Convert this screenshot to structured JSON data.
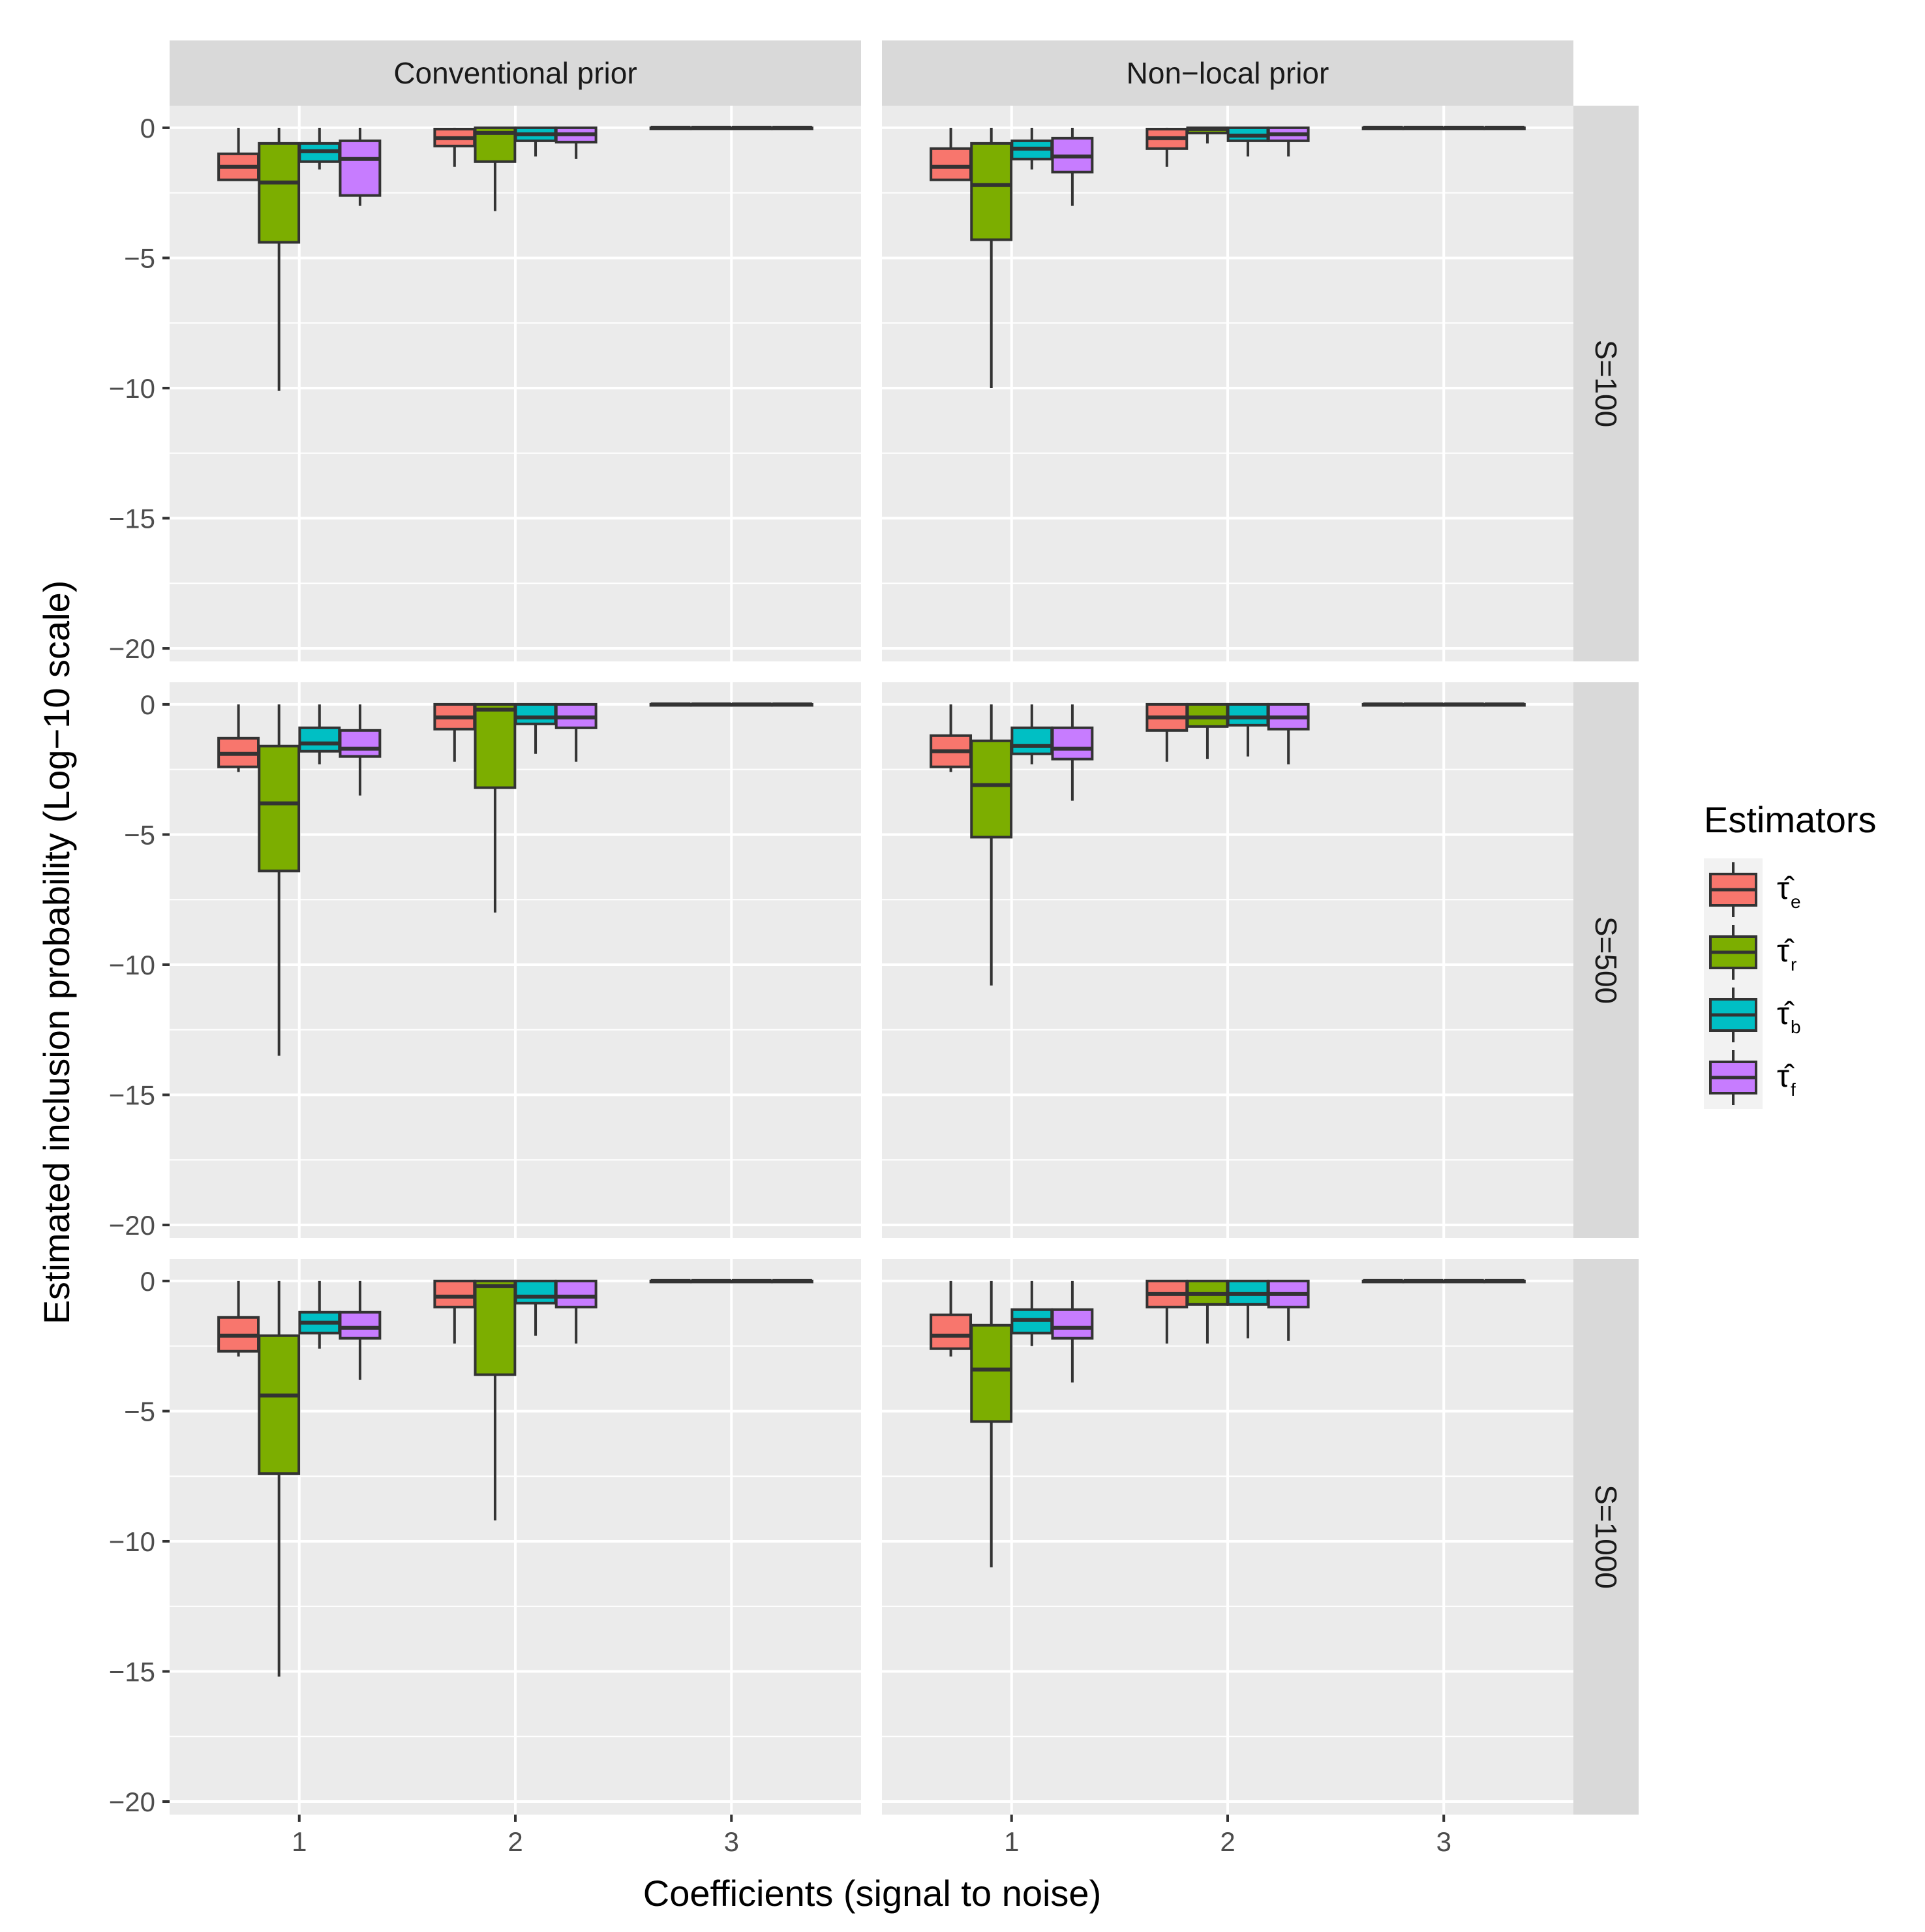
{
  "chart_data": {
    "type": "boxplot",
    "xlabel": "Coefficients (signal to noise)",
    "ylabel": "Estimated inclusion probability (Log−10 scale)",
    "ylim": [
      -20.5,
      0.85
    ],
    "y_ticks": [
      0,
      -5,
      -10,
      -15,
      -20
    ],
    "y_tick_labels": [
      "0",
      "−5",
      "−10",
      "−15",
      "−20"
    ],
    "categories": [
      "1",
      "2",
      "3"
    ],
    "columns": [
      "Conventional prior",
      "Non−local prior"
    ],
    "rows": [
      "S=100",
      "S=500",
      "S=1000"
    ],
    "legend": {
      "title": "Estimators",
      "position": "right",
      "entries": [
        {
          "key": "e",
          "glyph": "τ̂",
          "sub": "e",
          "color": "#F8766D"
        },
        {
          "key": "r",
          "glyph": "τ̂",
          "sub": "r",
          "color": "#7CAE00"
        },
        {
          "key": "b",
          "glyph": "τ̂",
          "sub": "b",
          "color": "#00BFC4"
        },
        {
          "key": "f",
          "glyph": "τ̂",
          "sub": "f",
          "color": "#C77CFF"
        }
      ]
    },
    "panels": [
      {
        "row": 0,
        "col": 0,
        "boxes": [
          [
            [
              -2.0,
              -2.0,
              -1.5,
              -1.0,
              0.0
            ],
            [
              -10.1,
              -4.4,
              -2.1,
              -0.6,
              0.0
            ],
            [
              -1.6,
              -1.3,
              -0.9,
              -0.6,
              0.0
            ],
            [
              -3.0,
              -2.6,
              -1.2,
              -0.5,
              0.0
            ]
          ],
          [
            [
              -1.5,
              -0.7,
              -0.4,
              -0.05,
              0.0
            ],
            [
              -3.2,
              -1.3,
              -0.2,
              0.0,
              0.0
            ],
            [
              -1.1,
              -0.5,
              -0.25,
              0.0,
              0.0
            ],
            [
              -1.2,
              -0.55,
              -0.25,
              0.0,
              0.0
            ]
          ],
          [
            [
              0,
              0,
              0,
              0,
              0
            ],
            [
              0,
              0,
              0,
              0,
              0
            ],
            [
              0,
              0,
              0,
              0,
              0
            ],
            [
              0,
              0,
              0,
              0,
              0
            ]
          ]
        ]
      },
      {
        "row": 0,
        "col": 1,
        "boxes": [
          [
            [
              -2.0,
              -2.0,
              -1.5,
              -0.8,
              0.0
            ],
            [
              -10.0,
              -4.3,
              -2.2,
              -0.6,
              0.0
            ],
            [
              -1.6,
              -1.2,
              -0.8,
              -0.5,
              0.0
            ],
            [
              -3.0,
              -1.7,
              -1.1,
              -0.4,
              0.0
            ]
          ],
          [
            [
              -1.5,
              -0.8,
              -0.4,
              -0.05,
              0.0
            ],
            [
              -0.6,
              -0.2,
              -0.05,
              0.0,
              0.0
            ],
            [
              -1.1,
              -0.5,
              -0.3,
              0.0,
              0.0
            ],
            [
              -1.1,
              -0.5,
              -0.25,
              0.0,
              0.0
            ]
          ],
          [
            [
              0,
              0,
              0,
              0,
              0
            ],
            [
              0,
              0,
              0,
              0,
              0
            ],
            [
              0,
              0,
              0,
              0,
              0
            ],
            [
              0,
              0,
              0,
              0,
              0
            ]
          ]
        ]
      },
      {
        "row": 1,
        "col": 0,
        "boxes": [
          [
            [
              -2.6,
              -2.4,
              -1.9,
              -1.3,
              0.0
            ],
            [
              -13.5,
              -6.4,
              -3.8,
              -1.6,
              0.0
            ],
            [
              -2.3,
              -1.8,
              -1.5,
              -0.9,
              0.0
            ],
            [
              -3.5,
              -2.0,
              -1.7,
              -1.0,
              0.0
            ]
          ],
          [
            [
              -2.2,
              -0.95,
              -0.5,
              0.0,
              0.0
            ],
            [
              -8.0,
              -3.2,
              -0.2,
              0.0,
              0.0
            ],
            [
              -1.9,
              -0.75,
              -0.5,
              0.0,
              0.0
            ],
            [
              -2.2,
              -0.9,
              -0.5,
              0.0,
              0.0
            ]
          ],
          [
            [
              0,
              0,
              0,
              0,
              0
            ],
            [
              0,
              0,
              0,
              0,
              0
            ],
            [
              0,
              0,
              0,
              0,
              0
            ],
            [
              0,
              0,
              0,
              0,
              0
            ]
          ]
        ]
      },
      {
        "row": 1,
        "col": 1,
        "boxes": [
          [
            [
              -2.6,
              -2.4,
              -1.8,
              -1.2,
              0.0
            ],
            [
              -10.8,
              -5.1,
              -3.1,
              -1.4,
              0.0
            ],
            [
              -2.3,
              -1.9,
              -1.6,
              -0.9,
              0.0
            ],
            [
              -3.7,
              -2.1,
              -1.7,
              -0.9,
              0.0
            ]
          ],
          [
            [
              -2.2,
              -1.0,
              -0.5,
              0.0,
              0.0
            ],
            [
              -2.1,
              -0.85,
              -0.5,
              0.0,
              0.0
            ],
            [
              -2.0,
              -0.8,
              -0.5,
              0.0,
              0.0
            ],
            [
              -2.3,
              -0.95,
              -0.5,
              0.0,
              0.0
            ]
          ],
          [
            [
              0,
              0,
              0,
              0,
              0
            ],
            [
              0,
              0,
              0,
              0,
              0
            ],
            [
              0,
              0,
              0,
              0,
              0
            ],
            [
              0,
              0,
              0,
              0,
              0
            ]
          ]
        ]
      },
      {
        "row": 2,
        "col": 0,
        "boxes": [
          [
            [
              -2.9,
              -2.7,
              -2.1,
              -1.4,
              0.0
            ],
            [
              -15.2,
              -7.4,
              -4.4,
              -2.1,
              0.0
            ],
            [
              -2.6,
              -2.0,
              -1.6,
              -1.2,
              0.0
            ],
            [
              -3.8,
              -2.2,
              -1.8,
              -1.2,
              0.0
            ]
          ],
          [
            [
              -2.4,
              -1.0,
              -0.6,
              0.0,
              0.0
            ],
            [
              -9.2,
              -3.6,
              -0.2,
              0.0,
              0.0
            ],
            [
              -2.1,
              -0.85,
              -0.6,
              0.0,
              0.0
            ],
            [
              -2.4,
              -1.0,
              -0.6,
              0.0,
              0.0
            ]
          ],
          [
            [
              0,
              0,
              0,
              0,
              0
            ],
            [
              0,
              0,
              0,
              0,
              0
            ],
            [
              0,
              0,
              0,
              0,
              0
            ],
            [
              0,
              0,
              0,
              0,
              0
            ]
          ]
        ]
      },
      {
        "row": 2,
        "col": 1,
        "boxes": [
          [
            [
              -2.9,
              -2.6,
              -2.1,
              -1.3,
              0.0
            ],
            [
              -11.0,
              -5.4,
              -3.4,
              -1.7,
              0.0
            ],
            [
              -2.5,
              -2.0,
              -1.5,
              -1.1,
              0.0
            ],
            [
              -3.9,
              -2.2,
              -1.8,
              -1.1,
              0.0
            ]
          ],
          [
            [
              -2.4,
              -1.0,
              -0.5,
              0.0,
              0.0
            ],
            [
              -2.4,
              -0.9,
              -0.5,
              0.0,
              0.0
            ],
            [
              -2.2,
              -0.9,
              -0.5,
              0.0,
              0.0
            ],
            [
              -2.3,
              -1.0,
              -0.5,
              0.0,
              0.0
            ]
          ],
          [
            [
              0,
              0,
              0,
              0,
              0
            ],
            [
              0,
              0,
              0,
              0,
              0
            ],
            [
              0,
              0,
              0,
              0,
              0
            ],
            [
              0,
              0,
              0,
              0,
              0
            ]
          ]
        ]
      }
    ]
  }
}
